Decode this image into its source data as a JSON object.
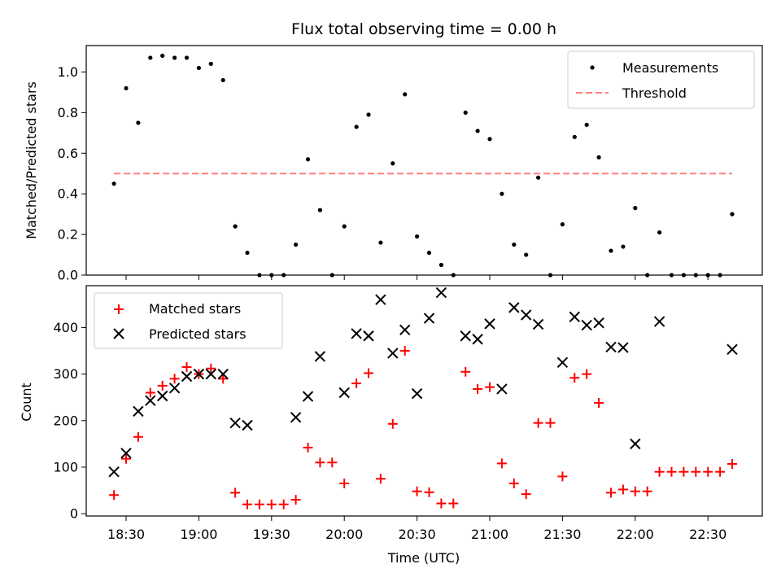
{
  "chart_data": [
    {
      "type": "scatter",
      "title": "Flux total observing time = 0.00 h",
      "xlabel": "",
      "ylabel": "Matched/Predicted stars",
      "ylim": [
        0,
        1.13
      ],
      "yticks": [
        "0.0",
        "0.2",
        "0.4",
        "0.6",
        "0.8",
        "1.0"
      ],
      "legend_placement": "top-right",
      "grid": false,
      "series": [
        {
          "name": "Measurements",
          "marker": "dot",
          "color": "#000000",
          "x": [
            "18:25",
            "18:30",
            "18:35",
            "18:40",
            "18:45",
            "18:50",
            "18:55",
            "19:00",
            "19:05",
            "19:10",
            "19:15",
            "19:20",
            "19:25",
            "19:30",
            "19:35",
            "19:40",
            "19:45",
            "19:50",
            "19:55",
            "20:00",
            "20:05",
            "20:10",
            "20:15",
            "20:20",
            "20:25",
            "20:30",
            "20:35",
            "20:40",
            "20:45",
            "20:50",
            "20:55",
            "21:00",
            "21:05",
            "21:10",
            "21:15",
            "21:20",
            "21:25",
            "21:30",
            "21:35",
            "21:40",
            "21:45",
            "21:50",
            "21:55",
            "22:00",
            "22:05",
            "22:10",
            "22:15",
            "22:20",
            "22:25",
            "22:30",
            "22:35",
            "22:40"
          ],
          "y": [
            0.45,
            0.92,
            0.75,
            1.07,
            1.08,
            1.07,
            1.07,
            1.02,
            1.04,
            0.96,
            0.24,
            0.11,
            0.0,
            0.0,
            0.0,
            0.15,
            0.57,
            0.32,
            0.0,
            0.24,
            0.73,
            0.79,
            0.16,
            0.55,
            0.89,
            0.19,
            0.11,
            0.05,
            0.0,
            0.8,
            0.71,
            0.67,
            0.4,
            0.15,
            0.1,
            0.48,
            0.0,
            0.25,
            0.68,
            0.74,
            0.58,
            0.12,
            0.14,
            0.33,
            0.0,
            0.21,
            0.0,
            0.0,
            0.0,
            0.0,
            0.0,
            0.3
          ]
        },
        {
          "name": "Threshold",
          "style": "dashed",
          "color": "#ff7f7f",
          "x": [
            "18:25",
            "22:40"
          ],
          "y": [
            0.5,
            0.5
          ]
        }
      ]
    },
    {
      "type": "scatter",
      "title": "",
      "xlabel": "Time (UTC)",
      "ylabel": "Count",
      "ylim": [
        -5,
        490
      ],
      "yticks": [
        "0",
        "100",
        "200",
        "300",
        "400"
      ],
      "xticks": [
        "18:30",
        "19:00",
        "19:30",
        "20:00",
        "20:30",
        "21:00",
        "21:30",
        "22:00",
        "22:30"
      ],
      "legend_placement": "top-left",
      "grid": false,
      "series": [
        {
          "name": "Matched stars",
          "marker": "plus",
          "color": "#ff0000",
          "x": [
            "18:25",
            "18:30",
            "18:35",
            "18:40",
            "18:45",
            "18:50",
            "18:55",
            "19:00",
            "19:05",
            "19:10",
            "19:15",
            "19:20",
            "19:25",
            "19:30",
            "19:35",
            "19:40",
            "19:45",
            "19:50",
            "19:55",
            "20:00",
            "20:05",
            "20:10",
            "20:15",
            "20:20",
            "20:25",
            "20:30",
            "20:35",
            "20:40",
            "20:45",
            "20:50",
            "20:55",
            "21:00",
            "21:05",
            "21:10",
            "21:15",
            "21:20",
            "21:25",
            "21:30",
            "21:35",
            "21:40",
            "21:45",
            "21:50",
            "21:55",
            "22:00",
            "22:05",
            "22:10",
            "22:15",
            "22:20",
            "22:25",
            "22:30",
            "22:35",
            "22:40"
          ],
          "y": [
            40,
            118,
            165,
            260,
            275,
            290,
            315,
            300,
            312,
            290,
            45,
            20,
            20,
            20,
            20,
            30,
            142,
            110,
            110,
            65,
            280,
            302,
            75,
            193,
            350,
            48,
            46,
            22,
            22,
            305,
            268,
            272,
            108,
            65,
            42,
            195,
            195,
            80,
            292,
            300,
            238,
            45,
            52,
            48,
            48,
            90,
            90,
            90,
            90,
            90,
            90,
            107
          ]
        },
        {
          "name": "Predicted stars",
          "marker": "x",
          "color": "#000000",
          "x": [
            "18:25",
            "18:30",
            "18:35",
            "18:40",
            "18:45",
            "18:50",
            "18:55",
            "19:00",
            "19:05",
            "19:10",
            "19:15",
            "19:20",
            "19:40",
            "19:45",
            "19:50",
            "20:00",
            "20:05",
            "20:10",
            "20:15",
            "20:20",
            "20:25",
            "20:30",
            "20:35",
            "20:40",
            "20:50",
            "20:55",
            "21:00",
            "21:05",
            "21:10",
            "21:15",
            "21:20",
            "21:30",
            "21:35",
            "21:40",
            "21:45",
            "21:50",
            "21:55",
            "22:00",
            "22:10",
            "22:40"
          ],
          "y": [
            90,
            130,
            220,
            243,
            253,
            270,
            295,
            300,
            300,
            300,
            195,
            190,
            207,
            252,
            338,
            260,
            387,
            382,
            460,
            345,
            395,
            258,
            420,
            475,
            382,
            375,
            408,
            268,
            443,
            427,
            407,
            325,
            423,
            405,
            410,
            358,
            357,
            150,
            413,
            353
          ]
        }
      ]
    }
  ]
}
